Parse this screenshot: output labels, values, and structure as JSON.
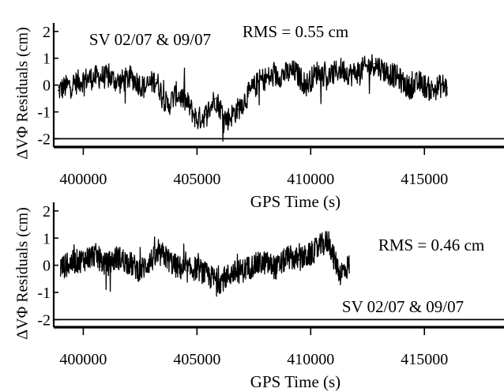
{
  "chart_data": [
    {
      "type": "line",
      "ylabel": "ΔVΦ Residuals (cm)",
      "xlabel": "GPS Time (s)",
      "xlim": [
        398700,
        418500
      ],
      "ylim": [
        -2.25,
        2.2
      ],
      "xticks": [
        400000,
        405000,
        410000,
        415000
      ],
      "xtick_labels": [
        "400000",
        "405000",
        "410000",
        "415000"
      ],
      "yticks": [
        -2,
        -1,
        0,
        1,
        2
      ],
      "ytick_labels": [
        "-2",
        "-1",
        "0",
        "1",
        "2"
      ],
      "annotations": [
        {
          "text": "SV 02/07 & 09/07",
          "position": "top-left"
        },
        {
          "text": "RMS =  0.55 cm",
          "position": "top-right"
        }
      ],
      "series": [
        {
          "x": [
            398900,
            399400,
            400000,
            400600,
            401100,
            401600,
            402100,
            402700,
            403200,
            403700,
            404100,
            404600,
            405000,
            405400,
            405800,
            406300,
            406800,
            407300,
            407800,
            408300,
            408800,
            409300,
            409800,
            410300,
            410800,
            411300,
            411800,
            412300,
            412800,
            413300,
            413800,
            414300,
            414800,
            415300,
            415800,
            416000
          ],
          "y": [
            -0.2,
            0.0,
            0.2,
            0.3,
            0.3,
            0.1,
            0.3,
            -0.1,
            0.2,
            -0.8,
            -0.3,
            -0.7,
            -1.3,
            -1.1,
            -0.5,
            -1.3,
            -0.9,
            -0.3,
            0.2,
            0.3,
            0.4,
            0.5,
            0.0,
            0.5,
            0.3,
            0.6,
            0.4,
            0.6,
            0.8,
            0.5,
            0.3,
            -0.1,
            0.1,
            -0.2,
            0.0,
            -0.1
          ]
        }
      ]
    },
    {
      "type": "line",
      "ylabel": "ΔVΦ Residuals (cm)",
      "xlabel": "GPS Time (s)",
      "xlim": [
        398700,
        418500
      ],
      "ylim": [
        -2.25,
        2.2
      ],
      "xticks": [
        400000,
        405000,
        410000,
        415000
      ],
      "xtick_labels": [
        "400000",
        "405000",
        "410000",
        "415000"
      ],
      "yticks": [
        -2,
        -1,
        0,
        1,
        2
      ],
      "ytick_labels": [
        "-2",
        "-1",
        "0",
        "1",
        "2"
      ],
      "annotations": [
        {
          "text": "RMS = 0.46 cm",
          "position": "top-right"
        },
        {
          "text": "SV 02/07 & 09/07",
          "position": "bottom-right"
        }
      ],
      "series": [
        {
          "x": [
            399000,
            399500,
            400000,
            400500,
            401000,
            401500,
            402000,
            402500,
            403000,
            403500,
            404000,
            404500,
            405000,
            405500,
            406000,
            406500,
            407000,
            407500,
            408000,
            408500,
            409000,
            409500,
            410000,
            410400,
            410800,
            411000,
            411300,
            411700
          ],
          "y": [
            -0.1,
            0.1,
            0.2,
            0.4,
            0.0,
            0.3,
            0.1,
            -0.2,
            0.2,
            0.4,
            0.0,
            -0.2,
            -0.1,
            -0.4,
            -0.6,
            -0.3,
            -0.2,
            0.0,
            0.1,
            -0.1,
            0.3,
            0.2,
            0.4,
            0.7,
            0.9,
            0.3,
            -0.3,
            0.0
          ]
        }
      ]
    }
  ]
}
